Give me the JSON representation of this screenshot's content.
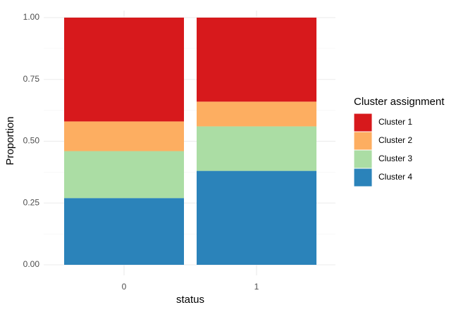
{
  "chart_data": {
    "type": "stacked_bar",
    "xlabel": "status",
    "ylabel": "Proportion",
    "legend_title": "Cluster assignment",
    "categories": [
      "0",
      "1"
    ],
    "series": [
      {
        "name": "Cluster 1",
        "color": "#d7191c",
        "values": [
          0.42,
          0.34
        ]
      },
      {
        "name": "Cluster 2",
        "color": "#fdae61",
        "values": [
          0.12,
          0.1
        ]
      },
      {
        "name": "Cluster 3",
        "color": "#abdda4",
        "values": [
          0.19,
          0.18
        ]
      },
      {
        "name": "Cluster 4",
        "color": "#2b83ba",
        "values": [
          0.27,
          0.38
        ]
      }
    ],
    "ylim": [
      0,
      1
    ],
    "yticks": [
      {
        "value": 0,
        "label": "0.00"
      },
      {
        "value": 0.25,
        "label": "0.25"
      },
      {
        "value": 0.5,
        "label": "0.50"
      },
      {
        "value": 0.75,
        "label": "0.75"
      },
      {
        "value": 1,
        "label": "1.00"
      }
    ],
    "grid": true,
    "legend": "right"
  }
}
